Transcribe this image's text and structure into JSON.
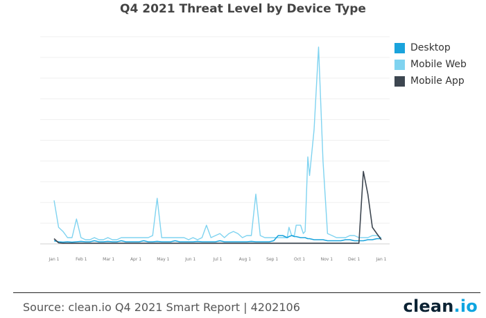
{
  "chart_data": {
    "type": "line",
    "title": "Q4 2021 Threat Level by Device Type",
    "xlabel": "",
    "ylabel": "",
    "x_ticks": [
      "Jan 1",
      "Feb 1",
      "Mar 1",
      "Apr 1",
      "May 1",
      "Jun 1",
      "Jul 1",
      "Aug 1",
      "Sep 1",
      "Oct 1",
      "Nov 1",
      "Dec 1",
      "Jan 1"
    ],
    "ylim": [
      0,
      100
    ],
    "grid": "horizontal",
    "legend": "top-right",
    "x": [
      0,
      5,
      10,
      15,
      20,
      25,
      30,
      35,
      40,
      45,
      50,
      55,
      60,
      65,
      70,
      75,
      80,
      85,
      90,
      95,
      100,
      105,
      110,
      115,
      120,
      125,
      130,
      135,
      140,
      145,
      150,
      155,
      160,
      165,
      170,
      175,
      180,
      185,
      190,
      195,
      200,
      205,
      210,
      215,
      220,
      225,
      230,
      235,
      240,
      245,
      250,
      255,
      260,
      262,
      265,
      268,
      270,
      275,
      278,
      280,
      283,
      285,
      290,
      295,
      300,
      305,
      310,
      315,
      320,
      325,
      330,
      335,
      340,
      345,
      350,
      355,
      360,
      365
    ],
    "series": [
      {
        "name": "Desktop",
        "color": "#1aa3dc",
        "values": [
          1.5,
          1,
          0.8,
          1,
          0.8,
          1,
          1.2,
          1,
          1,
          1.5,
          1,
          1,
          1.2,
          1,
          1,
          1.5,
          1,
          1,
          1,
          1,
          1.5,
          1,
          1,
          1.2,
          1,
          1,
          1,
          1.5,
          1,
          1,
          1,
          1,
          1.2,
          1,
          1,
          1,
          1,
          1.5,
          1,
          1,
          1,
          1,
          1,
          1,
          1.2,
          1,
          1,
          1,
          1,
          1.5,
          4,
          4,
          3,
          3.5,
          4,
          3.5,
          3.5,
          3,
          3,
          3,
          2.5,
          2.5,
          2,
          2,
          2,
          1.5,
          1.5,
          1.5,
          1.5,
          2,
          2,
          1.5,
          1.5,
          1.5,
          2,
          2,
          2.5,
          2.5
        ]
      },
      {
        "name": "Mobile Web",
        "color": "#7fd3f0",
        "values": [
          21,
          8,
          6,
          3,
          3,
          12,
          3,
          2,
          2,
          3,
          2,
          2,
          3,
          2,
          2,
          3,
          3,
          3,
          3,
          3,
          3,
          3,
          4,
          22,
          3,
          3,
          3,
          3,
          3,
          3,
          2,
          3,
          2,
          3,
          9,
          3,
          4,
          5,
          3,
          5,
          6,
          5,
          3,
          4,
          4,
          24,
          4,
          3,
          3,
          3,
          3,
          3,
          3,
          8,
          4,
          4,
          9,
          9,
          5,
          6,
          42,
          33,
          55,
          95,
          40,
          5,
          4,
          3,
          3,
          3,
          4,
          4,
          3,
          3,
          3,
          4,
          4,
          3
        ]
      },
      {
        "name": "Mobile App",
        "color": "#3d4650",
        "values": [
          2.5,
          0.5,
          0.3,
          0.3,
          0.3,
          0.3,
          0.3,
          0.3,
          0.3,
          0.3,
          0.3,
          0.3,
          0.3,
          0.3,
          0.3,
          0.3,
          0.3,
          0.3,
          0.3,
          0.3,
          0.3,
          0.3,
          0.3,
          0.3,
          0.3,
          0.3,
          0.3,
          0.3,
          0.3,
          0.3,
          0.3,
          0.3,
          0.3,
          0.3,
          0.3,
          0.3,
          0.3,
          0.3,
          0.3,
          0.3,
          0.3,
          0.3,
          0.3,
          0.3,
          0.3,
          0.3,
          0.3,
          0.3,
          0.3,
          0.3,
          0.3,
          0.3,
          0.3,
          0.3,
          0.3,
          0.3,
          0.3,
          0.3,
          0.3,
          0.3,
          0.3,
          0.3,
          0.3,
          0.3,
          0.3,
          0.3,
          0.3,
          0.3,
          0.3,
          0.3,
          0.3,
          0.3,
          0.3,
          35,
          24,
          8,
          5,
          2
        ]
      }
    ]
  },
  "footer": {
    "source": "Source: clean.io Q4 2021 Smart Report | 4202106",
    "brand_main": "clean",
    "brand_dot": ".",
    "brand_io": "io"
  }
}
